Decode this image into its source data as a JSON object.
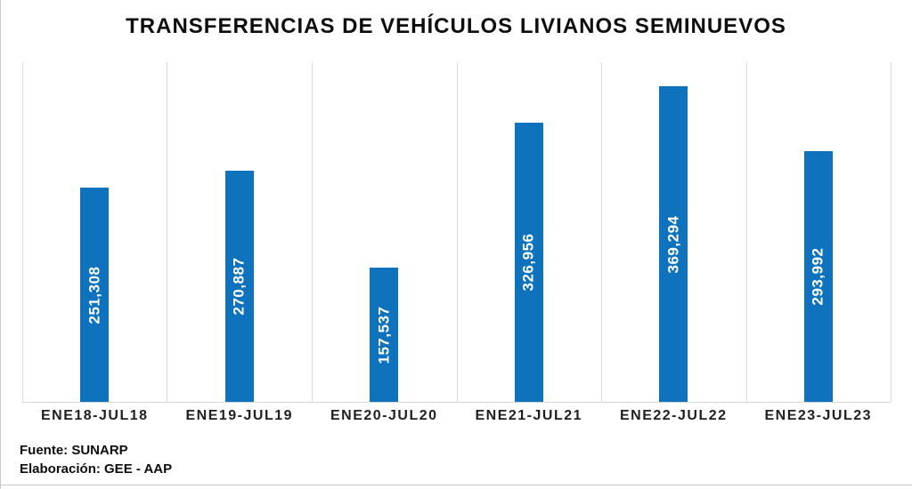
{
  "title": "TRANSFERENCIAS DE VEHÍCULOS LIVIANOS SEMINUEVOS",
  "footer": {
    "source": "Fuente: SUNARP",
    "elaboration": "Elaboración: GEE - AAP"
  },
  "colors": {
    "bar": "#0e72bc",
    "gridline": "#d9d9d9",
    "value_label_text": "#ffffff",
    "title_text": "#0d0d0d",
    "axis_label_text": "#1f1f1f"
  },
  "chart_data": {
    "type": "bar",
    "title": "TRANSFERENCIAS DE VEHÍCULOS LIVIANOS SEMINUEVOS",
    "categories": [
      "ENE18-JUL18",
      "ENE19-JUL19",
      "ENE20-JUL20",
      "ENE21-JUL21",
      "ENE22-JUL22",
      "ENE23-JUL23"
    ],
    "values": [
      251308,
      270887,
      157537,
      326956,
      369294,
      293992
    ],
    "value_labels": [
      "251,308",
      "270,887",
      "157,537",
      "326,956",
      "369,294",
      "293,992"
    ],
    "xlabel": "",
    "ylabel": "",
    "ylim": [
      0,
      400000
    ],
    "grid": "vertical-category-separators-only",
    "legend": "none",
    "bar_label_rotation": 90,
    "bar_label_position": "center-inside"
  }
}
